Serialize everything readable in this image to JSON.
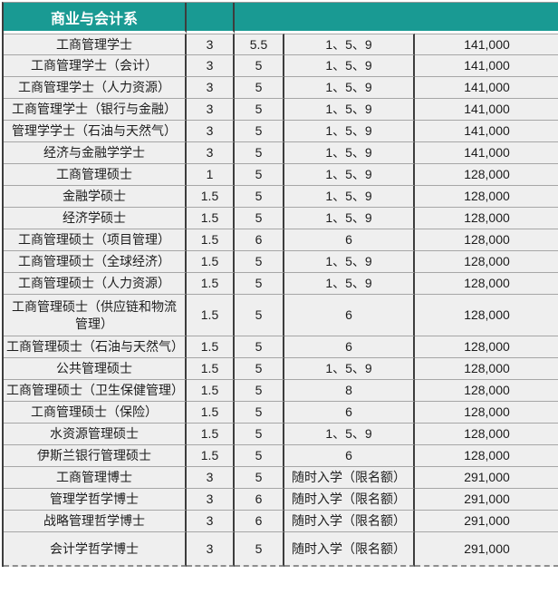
{
  "department": {
    "title": "商业与会计系"
  },
  "chart_data": {
    "type": "table",
    "title": "商业与会计系",
    "rows": [
      {
        "cells": [
          "工商管理学士",
          "3",
          "5.5",
          "1、5、9",
          "141,000"
        ]
      },
      {
        "cells": [
          "工商管理学士（会计）",
          "3",
          "5",
          "1、5、9",
          "141,000"
        ]
      },
      {
        "cells": [
          "工商管理学士（人力资源）",
          "3",
          "5",
          "1、5、9",
          "141,000"
        ]
      },
      {
        "cells": [
          "工商管理学士（银行与金融）",
          "3",
          "5",
          "1、5、9",
          "141,000"
        ]
      },
      {
        "cells": [
          "管理学学士（石油与天然气）",
          "3",
          "5",
          "1、5、9",
          "141,000"
        ]
      },
      {
        "cells": [
          "经济与金融学学士",
          "3",
          "5",
          "1、5、9",
          "141,000"
        ]
      },
      {
        "cells": [
          "工商管理硕士",
          "1",
          "5",
          "1、5、9",
          "128,000"
        ]
      },
      {
        "cells": [
          "金融学硕士",
          "1.5",
          "5",
          "1、5、9",
          "128,000"
        ]
      },
      {
        "cells": [
          "经济学硕士",
          "1.5",
          "5",
          "1、5、9",
          "128,000"
        ]
      },
      {
        "cells": [
          "工商管理硕士（项目管理）",
          "1.5",
          "6",
          "6",
          "128,000"
        ]
      },
      {
        "cells": [
          "工商管理硕士（全球经济）",
          "1.5",
          "5",
          "1、5、9",
          "128,000"
        ]
      },
      {
        "cells": [
          "工商管理硕士（人力资源）",
          "1.5",
          "5",
          "1、5、9",
          "128,000"
        ]
      },
      {
        "cells": [
          "工商管理硕士（供应链和物流管理）",
          "1.5",
          "5",
          "6",
          "128,000"
        ],
        "height": "double"
      },
      {
        "cells": [
          "工商管理硕士（石油与天然气）",
          "1.5",
          "5",
          "6",
          "128,000"
        ]
      },
      {
        "cells": [
          "公共管理硕士",
          "1.5",
          "5",
          "1、5、9",
          "128,000"
        ]
      },
      {
        "cells": [
          "工商管理硕士（卫生保健管理）",
          "1.5",
          "5",
          "8",
          "128,000"
        ]
      },
      {
        "cells": [
          "工商管理硕士（保险）",
          "1.5",
          "5",
          "6",
          "128,000"
        ]
      },
      {
        "cells": [
          "水资源管理硕士",
          "1.5",
          "5",
          "1、5、9",
          "128,000"
        ]
      },
      {
        "cells": [
          "伊斯兰银行管理硕士",
          "1.5",
          "5",
          "6",
          "128,000"
        ]
      },
      {
        "cells": [
          "工商管理博士",
          "3",
          "5",
          "随时入学（限名额）",
          "291,000"
        ]
      },
      {
        "cells": [
          "管理学哲学博士",
          "3",
          "6",
          "随时入学（限名额）",
          "291,000"
        ]
      },
      {
        "cells": [
          "战略管理哲学博士",
          "3",
          "6",
          "随时入学（限名额）",
          "291,000"
        ]
      },
      {
        "cells": [
          "会计学哲学博士",
          "3",
          "5",
          "随时入学（限名额）",
          "291,000"
        ],
        "height": "large"
      }
    ]
  },
  "styles": {
    "header_bg": "#199a93",
    "header_text": "#ffffff",
    "row_bg": "#efefef",
    "grid_vertical": "#3d3d3d",
    "grid_horizontal": "#a6a6a6",
    "bottom_dashed": "#8f8f8f",
    "text": "#1d1d1d"
  }
}
